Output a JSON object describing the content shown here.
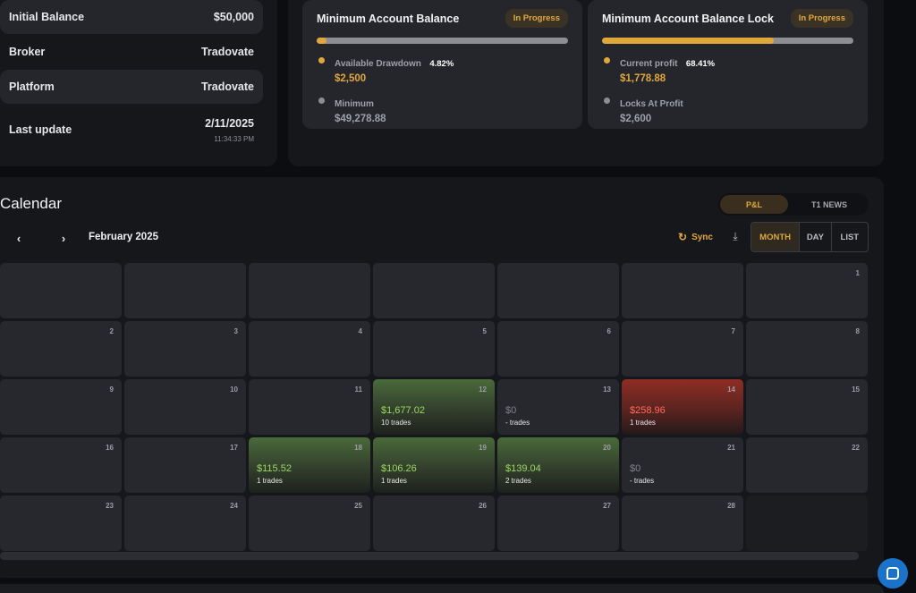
{
  "account_info": [
    {
      "label": "Initial Balance",
      "value": "$50,000"
    },
    {
      "label": "Broker",
      "value": "Tradovate"
    },
    {
      "label": "Platform",
      "value": "Tradovate"
    },
    {
      "label": "Last update",
      "value": "2/11/2025",
      "sub": "11:34:33 PM"
    }
  ],
  "cards": [
    {
      "title": "Minimum Account Balance",
      "badge": "In Progress",
      "progress": 0.04,
      "stats": [
        {
          "label": "Available Drawdown",
          "pct": "4.82%",
          "value": "$2,500",
          "color": "#e0a83b"
        },
        {
          "label": "Minimum",
          "pct": "",
          "value": "$49,278.88",
          "color": "#8d8e93"
        }
      ]
    },
    {
      "title": "Minimum Account Balance Lock",
      "badge": "In Progress",
      "progress": 0.684,
      "stats": [
        {
          "label": "Current profit",
          "pct": "68.41%",
          "value": "$1,778.88",
          "color": "#e0a83b"
        },
        {
          "label": "Locks At Profit",
          "pct": "",
          "value": "$2,600",
          "color": "#8d8e93"
        }
      ]
    }
  ],
  "calendar": {
    "title": "Calendar",
    "toggle": {
      "active": "P&L",
      "other": "T1 NEWS"
    },
    "prev_icon": "chevron-left-icon",
    "next_icon": "chevron-right-icon",
    "month": "February 2025",
    "sync_label": "Sync",
    "views": [
      "MONTH",
      "DAY",
      "LIST"
    ],
    "active_view": "MONTH",
    "days": [
      {
        "num": ""
      },
      {
        "num": ""
      },
      {
        "num": ""
      },
      {
        "num": ""
      },
      {
        "num": ""
      },
      {
        "num": ""
      },
      {
        "num": "1"
      },
      {
        "num": "2"
      },
      {
        "num": "3"
      },
      {
        "num": "4"
      },
      {
        "num": "5"
      },
      {
        "num": "6"
      },
      {
        "num": "7"
      },
      {
        "num": "8"
      },
      {
        "num": "9"
      },
      {
        "num": "10"
      },
      {
        "num": "11"
      },
      {
        "num": "12",
        "pnl": "$1,677.02",
        "trades": "10 trades",
        "kind": "win"
      },
      {
        "num": "13",
        "pnl": "$0",
        "trades": "- trades",
        "kind": "zero"
      },
      {
        "num": "14",
        "pnl": "$258.96",
        "trades": "1 trades",
        "kind": "loss"
      },
      {
        "num": "15"
      },
      {
        "num": "16"
      },
      {
        "num": "17"
      },
      {
        "num": "18",
        "pnl": "$115.52",
        "trades": "1 trades",
        "kind": "win"
      },
      {
        "num": "19",
        "pnl": "$106.26",
        "trades": "1 trades",
        "kind": "win"
      },
      {
        "num": "20",
        "pnl": "$139.04",
        "trades": "2 trades",
        "kind": "win"
      },
      {
        "num": "21",
        "pnl": "$0",
        "trades": "- trades",
        "kind": "zero"
      },
      {
        "num": "22"
      },
      {
        "num": "23"
      },
      {
        "num": "24"
      },
      {
        "num": "25"
      },
      {
        "num": "26"
      },
      {
        "num": "27"
      },
      {
        "num": "28"
      },
      {
        "num": "",
        "kind": "blank"
      }
    ]
  }
}
